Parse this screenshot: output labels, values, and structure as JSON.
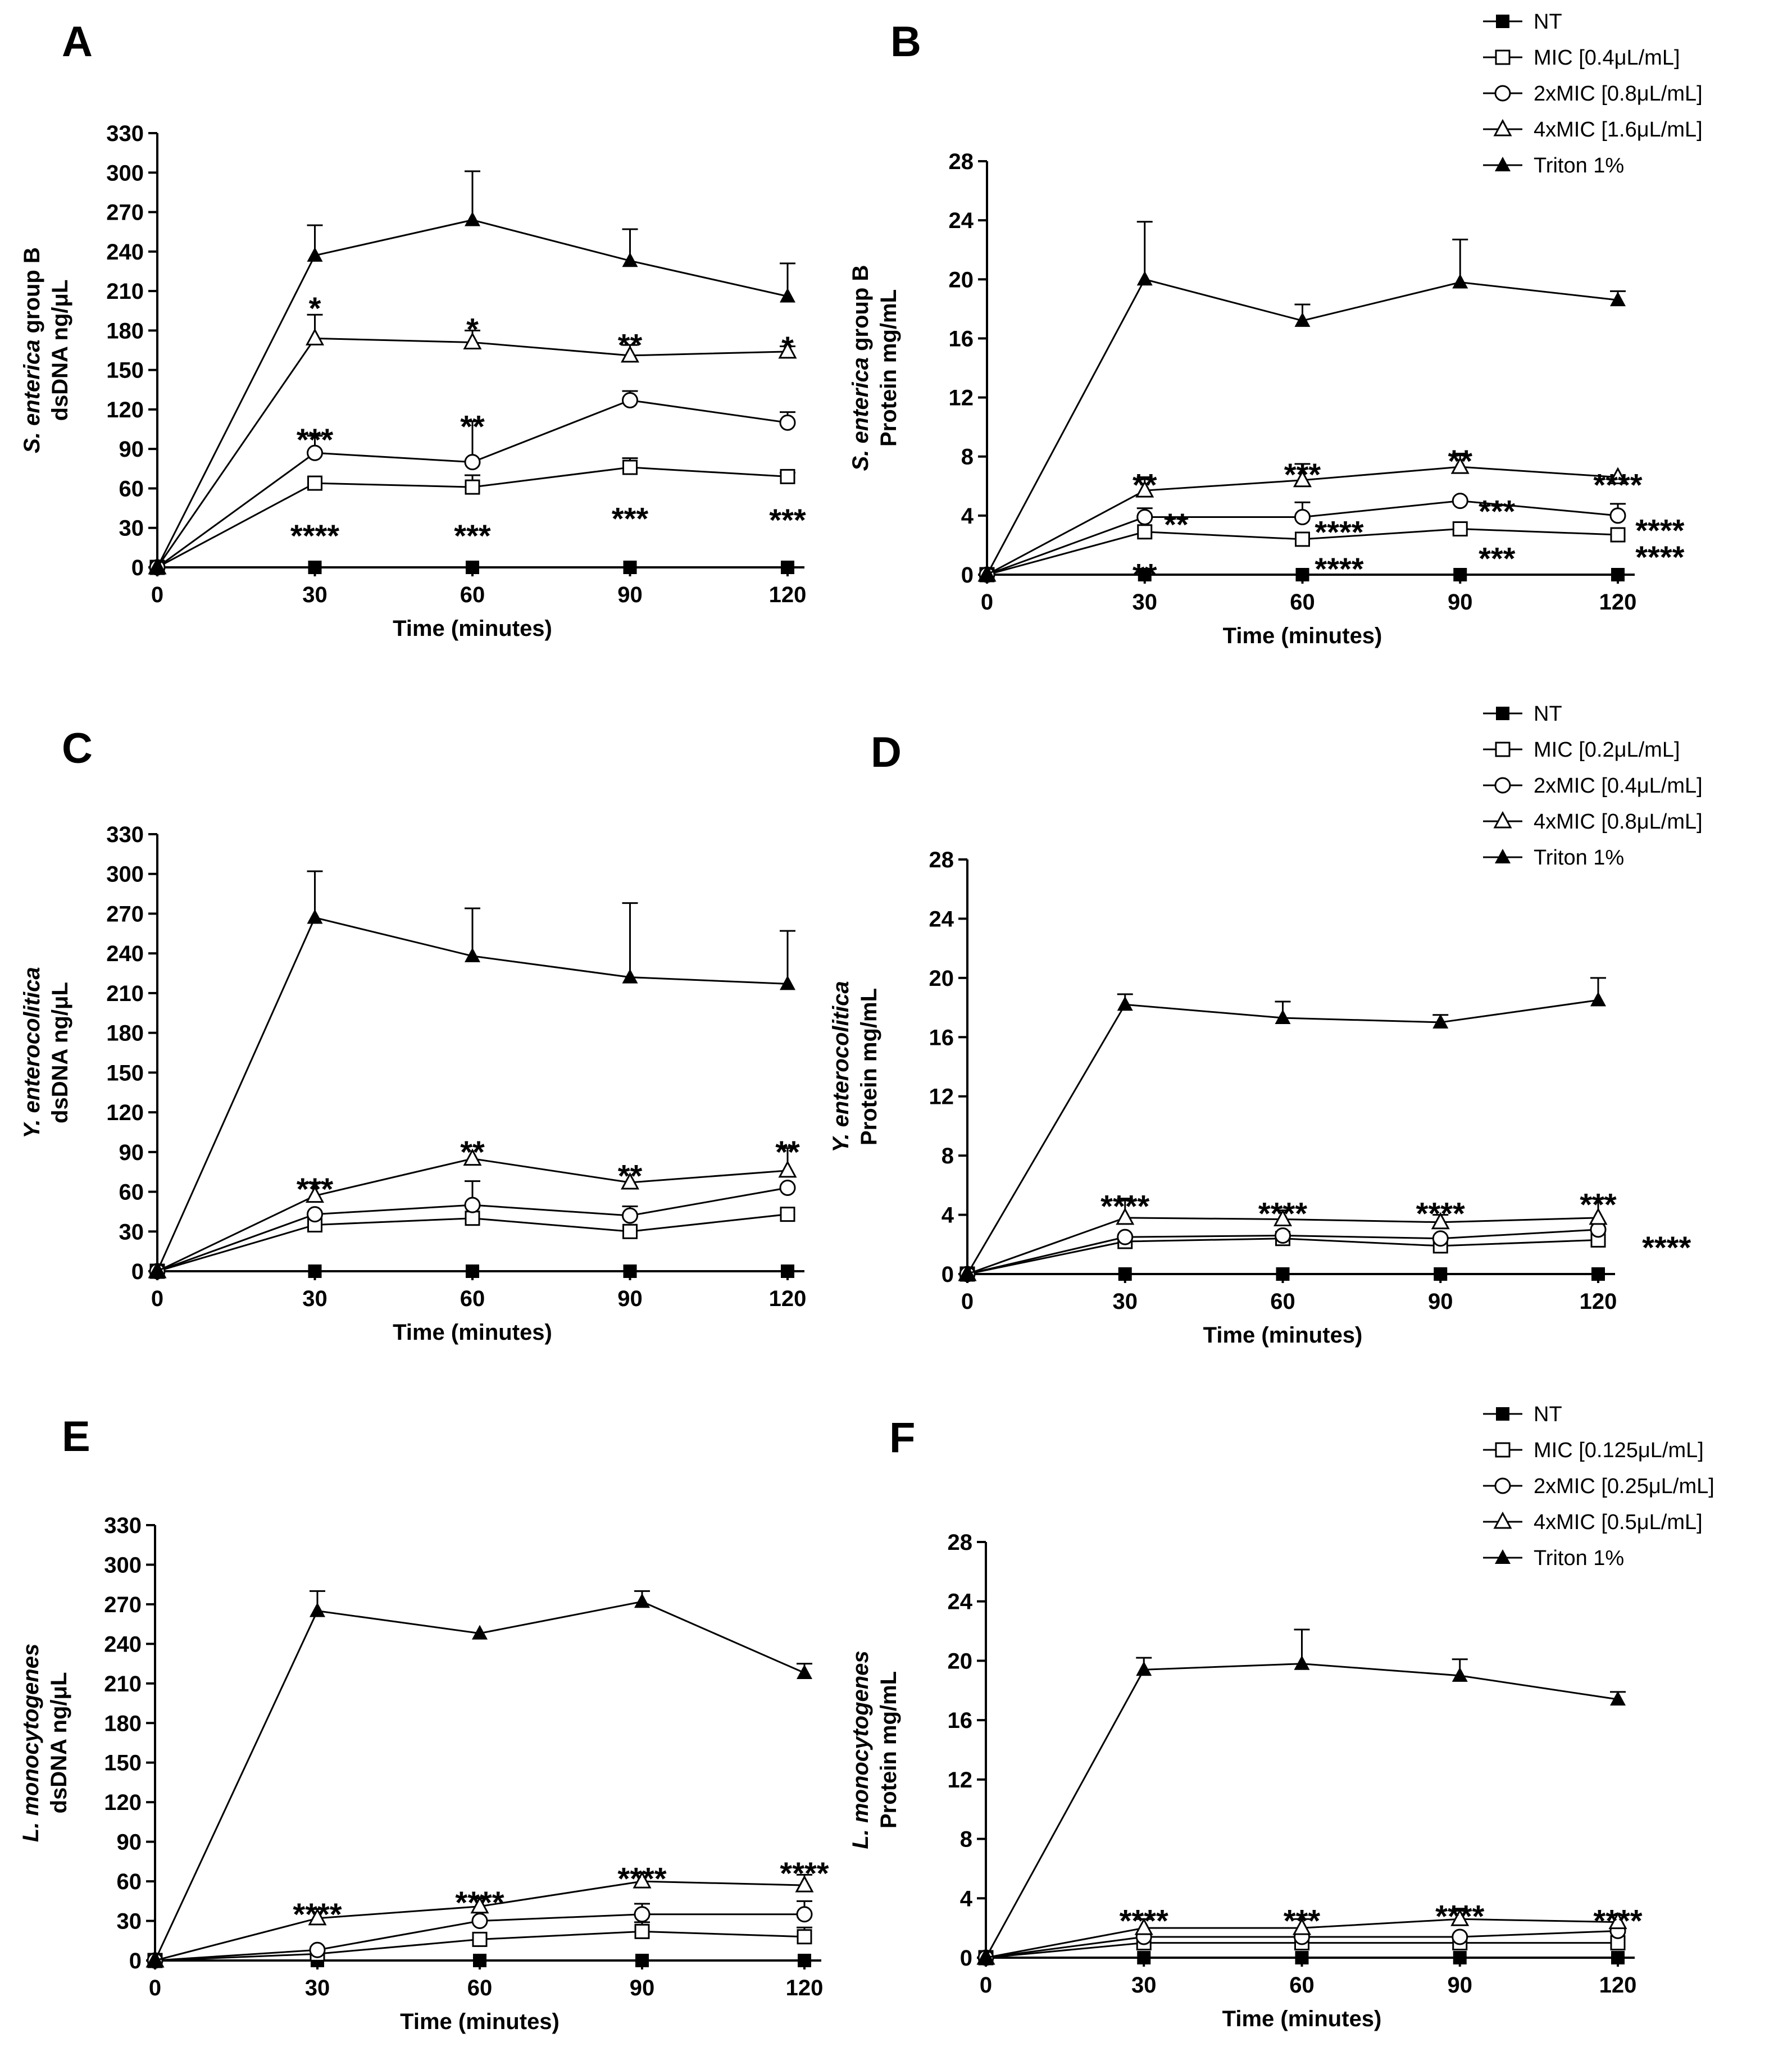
{
  "chart_data": [
    {
      "panel": "A",
      "type": "line",
      "ylabel_italic": "S. enterica",
      "ylabel_rest": " group B",
      "ylabel2": "dsDNA ng/μL",
      "xlabel": "Time (minutes)",
      "x": [
        0,
        30,
        60,
        90,
        120
      ],
      "ylim": [
        0,
        330
      ],
      "yticks": [
        0,
        30,
        60,
        90,
        120,
        150,
        180,
        210,
        240,
        270,
        300,
        330
      ],
      "series": [
        {
          "name": "NT",
          "marker": "square-filled",
          "values": [
            0,
            0,
            0,
            0,
            0
          ],
          "err": [
            0,
            0,
            0,
            0,
            0
          ]
        },
        {
          "name": "MIC",
          "marker": "square-open",
          "values": [
            0,
            64,
            61,
            76,
            69
          ],
          "err": [
            0,
            0,
            9,
            7,
            3
          ]
        },
        {
          "name": "2xMIC",
          "marker": "circle-open",
          "values": [
            0,
            87,
            80,
            127,
            110
          ],
          "err": [
            0,
            13,
            31,
            7,
            8
          ]
        },
        {
          "name": "4xMIC",
          "marker": "triangle-open",
          "values": [
            0,
            174,
            171,
            161,
            164
          ],
          "err": [
            0,
            18,
            9,
            8,
            4
          ]
        },
        {
          "name": "Triton 1%",
          "marker": "triangle-filled",
          "values": [
            0,
            237,
            264,
            233,
            206
          ],
          "err": [
            0,
            23,
            37,
            24,
            25
          ]
        }
      ],
      "annotations": [
        {
          "text": "*",
          "x": 30,
          "y": 205
        },
        {
          "text": "*",
          "x": 60,
          "y": 189
        },
        {
          "text": "**",
          "x": 90,
          "y": 177
        },
        {
          "text": "*",
          "x": 120,
          "y": 175
        },
        {
          "text": "***",
          "x": 30,
          "y": 105
        },
        {
          "text": "**",
          "x": 60,
          "y": 115
        },
        {
          "text": "****",
          "x": 30,
          "y": 32
        },
        {
          "text": "***",
          "x": 60,
          "y": 32
        },
        {
          "text": "***",
          "x": 90,
          "y": 45
        },
        {
          "text": "***",
          "x": 120,
          "y": 44
        }
      ]
    },
    {
      "panel": "B",
      "type": "line",
      "ylabel_italic": "S. enterica",
      "ylabel_rest": " group B",
      "ylabel2": "Protein mg/mL",
      "xlabel": "Time (minutes)",
      "x": [
        0,
        30,
        60,
        90,
        120
      ],
      "ylim": [
        0,
        28
      ],
      "yticks": [
        0,
        4,
        8,
        12,
        16,
        20,
        24,
        28
      ],
      "series": [
        {
          "name": "NT",
          "marker": "square-filled",
          "values": [
            0,
            0,
            0,
            0,
            0
          ],
          "err": [
            0,
            0,
            0,
            0,
            0
          ]
        },
        {
          "name": "MIC [0.4μL/mL]",
          "marker": "square-open",
          "values": [
            0,
            2.9,
            2.4,
            3.1,
            2.7
          ],
          "err": [
            0,
            0,
            0,
            0,
            0
          ]
        },
        {
          "name": "2xMIC [0.8μL/mL]",
          "marker": "circle-open",
          "values": [
            0,
            3.9,
            3.9,
            5.0,
            4.0
          ],
          "err": [
            0,
            0.6,
            1.0,
            0,
            0.8
          ]
        },
        {
          "name": "4xMIC [1.6μL/mL]",
          "marker": "triangle-open",
          "values": [
            0,
            5.7,
            6.4,
            7.3,
            6.6
          ],
          "err": [
            0,
            0.9,
            1.1,
            0.9,
            0
          ]
        },
        {
          "name": "Triton 1%",
          "marker": "triangle-filled",
          "values": [
            0,
            20.0,
            17.2,
            19.8,
            18.6
          ],
          "err": [
            0,
            3.9,
            1.1,
            2.9,
            0.6
          ]
        }
      ],
      "annotations": [
        {
          "text": "**",
          "x": 30,
          "y": 6.8
        },
        {
          "text": "***",
          "x": 60,
          "y": 7.5
        },
        {
          "text": "**",
          "x": 90,
          "y": 8.4
        },
        {
          "text": "****",
          "x": 120,
          "y": 6.8
        },
        {
          "text": "**",
          "x": 36,
          "y": 4.1
        },
        {
          "text": "****",
          "x": 67,
          "y": 3.6
        },
        {
          "text": "***",
          "x": 97,
          "y": 5.0
        },
        {
          "text": "****",
          "x": 128,
          "y": 3.7
        },
        {
          "text": "**",
          "x": 30,
          "y": 0.7
        },
        {
          "text": "****",
          "x": 67,
          "y": 1.1
        },
        {
          "text": "***",
          "x": 97,
          "y": 1.8
        },
        {
          "text": "****",
          "x": 128,
          "y": 1.9
        }
      ]
    },
    {
      "panel": "C",
      "type": "line",
      "ylabel_italic": "Y. enterocolitica",
      "ylabel_rest": "",
      "ylabel2": "dsDNA ng/μL",
      "xlabel": "Time (minutes)",
      "x": [
        0,
        30,
        60,
        90,
        120
      ],
      "ylim": [
        0,
        330
      ],
      "yticks": [
        0,
        30,
        60,
        90,
        120,
        150,
        180,
        210,
        240,
        270,
        300,
        330
      ],
      "series": [
        {
          "name": "NT",
          "marker": "square-filled",
          "values": [
            0,
            0,
            0,
            0,
            0
          ],
          "err": [
            0,
            0,
            0,
            0,
            0
          ]
        },
        {
          "name": "MIC",
          "marker": "square-open",
          "values": [
            0,
            35,
            40,
            30,
            43
          ],
          "err": [
            0,
            0,
            0,
            0,
            0
          ]
        },
        {
          "name": "2xMIC",
          "marker": "circle-open",
          "values": [
            0,
            43,
            50,
            42,
            63
          ],
          "err": [
            0,
            0,
            18,
            7,
            0
          ]
        },
        {
          "name": "4xMIC",
          "marker": "triangle-open",
          "values": [
            0,
            57,
            85,
            67,
            76
          ],
          "err": [
            0,
            10,
            0,
            0,
            17
          ]
        },
        {
          "name": "Triton 1%",
          "marker": "triangle-filled",
          "values": [
            0,
            267,
            238,
            222,
            217
          ],
          "err": [
            0,
            35,
            36,
            56,
            40
          ]
        }
      ],
      "annotations": [
        {
          "text": "***",
          "x": 30,
          "y": 70
        },
        {
          "text": "**",
          "x": 60,
          "y": 98
        },
        {
          "text": "**",
          "x": 90,
          "y": 80
        },
        {
          "text": "**",
          "x": 120,
          "y": 98
        }
      ]
    },
    {
      "panel": "D",
      "type": "line",
      "ylabel_italic": "Y. enterocolitica",
      "ylabel_rest": "",
      "ylabel2": "Protein mg/mL",
      "xlabel": "Time (minutes)",
      "x": [
        0,
        30,
        60,
        90,
        120
      ],
      "ylim": [
        0,
        28
      ],
      "yticks": [
        0,
        4,
        8,
        12,
        16,
        20,
        24,
        28
      ],
      "series": [
        {
          "name": "NT",
          "marker": "square-filled",
          "values": [
            0,
            0,
            0,
            0,
            0
          ],
          "err": [
            0,
            0,
            0,
            0,
            0
          ]
        },
        {
          "name": "MIC [0.2μL/mL]",
          "marker": "square-open",
          "values": [
            0,
            2.2,
            2.4,
            1.9,
            2.3
          ],
          "err": [
            0,
            0,
            0,
            0,
            0
          ]
        },
        {
          "name": "2xMIC [0.4μL/mL]",
          "marker": "circle-open",
          "values": [
            0,
            2.5,
            2.6,
            2.4,
            3.0
          ],
          "err": [
            0,
            0,
            0,
            0,
            0
          ]
        },
        {
          "name": "4xMIC [0.8μL/mL]",
          "marker": "triangle-open",
          "values": [
            0,
            3.8,
            3.7,
            3.5,
            3.8
          ],
          "err": [
            0,
            1.3,
            0.6,
            0.5,
            1.3
          ]
        },
        {
          "name": "Triton 1%",
          "marker": "triangle-filled",
          "values": [
            0,
            18.2,
            17.3,
            17.0,
            18.5
          ],
          "err": [
            0,
            0.7,
            1.1,
            0.5,
            1.5
          ]
        }
      ],
      "annotations": [
        {
          "text": "****",
          "x": 30,
          "y": 5.3
        },
        {
          "text": "****",
          "x": 60,
          "y": 4.8
        },
        {
          "text": "****",
          "x": 90,
          "y": 4.8
        },
        {
          "text": "***",
          "x": 120,
          "y": 5.4
        },
        {
          "text": "****",
          "x": 133,
          "y": 2.5
        }
      ]
    },
    {
      "panel": "E",
      "type": "line",
      "ylabel_italic": "L. monocytogenes",
      "ylabel_rest": "",
      "ylabel2": "dsDNA ng/μL",
      "xlabel": "Time (minutes)",
      "x": [
        0,
        30,
        60,
        90,
        120
      ],
      "ylim": [
        0,
        330
      ],
      "yticks": [
        0,
        30,
        60,
        90,
        120,
        150,
        180,
        210,
        240,
        270,
        300,
        330
      ],
      "series": [
        {
          "name": "NT",
          "marker": "square-filled",
          "values": [
            0,
            0,
            0,
            0,
            0
          ],
          "err": [
            0,
            0,
            0,
            0,
            0
          ]
        },
        {
          "name": "MIC",
          "marker": "square-open",
          "values": [
            0,
            5,
            16,
            22,
            18
          ],
          "err": [
            0,
            0,
            0,
            7,
            7
          ]
        },
        {
          "name": "2xMIC",
          "marker": "circle-open",
          "values": [
            0,
            8,
            30,
            35,
            35
          ],
          "err": [
            0,
            0,
            0,
            8,
            10
          ]
        },
        {
          "name": "4xMIC",
          "marker": "triangle-open",
          "values": [
            0,
            32,
            41,
            60,
            57
          ],
          "err": [
            0,
            7,
            6,
            0,
            8
          ]
        },
        {
          "name": "Triton 1%",
          "marker": "triangle-filled",
          "values": [
            0,
            265,
            248,
            272,
            218
          ],
          "err": [
            0,
            15,
            0,
            8,
            7
          ]
        }
      ],
      "annotations": [
        {
          "text": "****",
          "x": 30,
          "y": 43
        },
        {
          "text": "****",
          "x": 60,
          "y": 52
        },
        {
          "text": "****",
          "x": 90,
          "y": 70
        },
        {
          "text": "****",
          "x": 120,
          "y": 74
        }
      ]
    },
    {
      "panel": "F",
      "type": "line",
      "ylabel_italic": "L. monocytogenes",
      "ylabel_rest": "",
      "ylabel2": "Protein mg/mL",
      "xlabel": "Time (minutes)",
      "x": [
        0,
        30,
        60,
        90,
        120
      ],
      "ylim": [
        0,
        28
      ],
      "yticks": [
        0,
        4,
        8,
        12,
        16,
        20,
        24,
        28
      ],
      "series": [
        {
          "name": "NT",
          "marker": "square-filled",
          "values": [
            0,
            0,
            0,
            0,
            0
          ],
          "err": [
            0,
            0,
            0,
            0,
            0
          ]
        },
        {
          "name": "MIC [0.125μL/mL]",
          "marker": "square-open",
          "values": [
            0,
            1.0,
            1.0,
            1.0,
            1.0
          ],
          "err": [
            0,
            0,
            0,
            0,
            0
          ]
        },
        {
          "name": "2xMIC [0.25μL/mL]",
          "marker": "circle-open",
          "values": [
            0,
            1.4,
            1.4,
            1.4,
            1.8
          ],
          "err": [
            0,
            0,
            0,
            0,
            0
          ]
        },
        {
          "name": "4xMIC [0.5μL/mL]",
          "marker": "triangle-open",
          "values": [
            0,
            2.0,
            2.0,
            2.6,
            2.4
          ],
          "err": [
            0,
            0.6,
            0.6,
            0.7,
            0
          ]
        },
        {
          "name": "Triton 1%",
          "marker": "triangle-filled",
          "values": [
            0,
            19.4,
            19.8,
            19.0,
            17.4
          ],
          "err": [
            0,
            0.8,
            2.3,
            1.1,
            0.5
          ]
        }
      ],
      "annotations": [
        {
          "text": "****",
          "x": 30,
          "y": 3.2
        },
        {
          "text": "***",
          "x": 60,
          "y": 3.2
        },
        {
          "text": "****",
          "x": 90,
          "y": 3.5
        },
        {
          "text": "****",
          "x": 120,
          "y": 3.2
        }
      ]
    }
  ]
}
